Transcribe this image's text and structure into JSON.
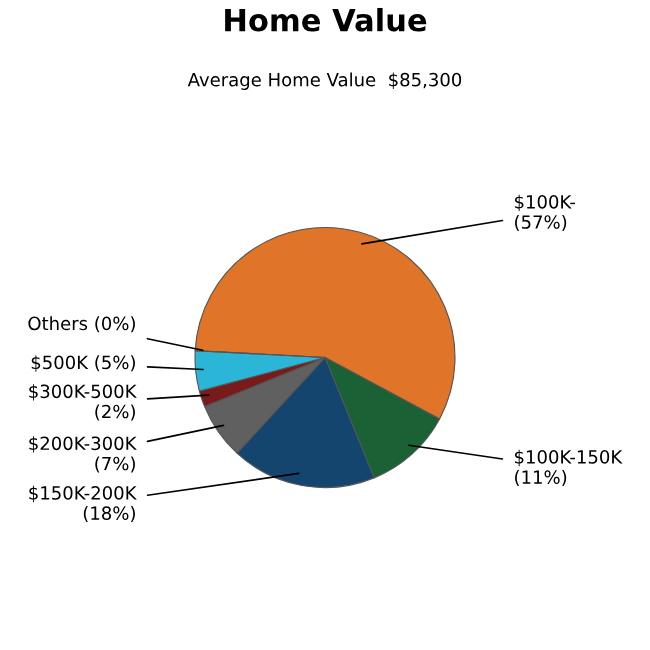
{
  "chart_data": {
    "type": "pie",
    "title": "Home Value",
    "subtitle": "Average Home Value  $85,300",
    "categories": [
      "$100K-",
      "$100K-150K",
      "$150K-200K",
      "$200K-300K",
      "$300K-500K",
      "$500K",
      "Others"
    ],
    "values": [
      57,
      11,
      18,
      7,
      2,
      5,
      0
    ],
    "value_labels": [
      "(57%)",
      "(11%)",
      "(18%)",
      "(7%)",
      "(2%)",
      "(5%)",
      "(0%)"
    ],
    "colors": [
      "#e07428",
      "#1a6236",
      "#14456e",
      "#606060",
      "#7a1b1b",
      "#2bb5d6",
      "#9a9a9a"
    ],
    "legend": false
  }
}
